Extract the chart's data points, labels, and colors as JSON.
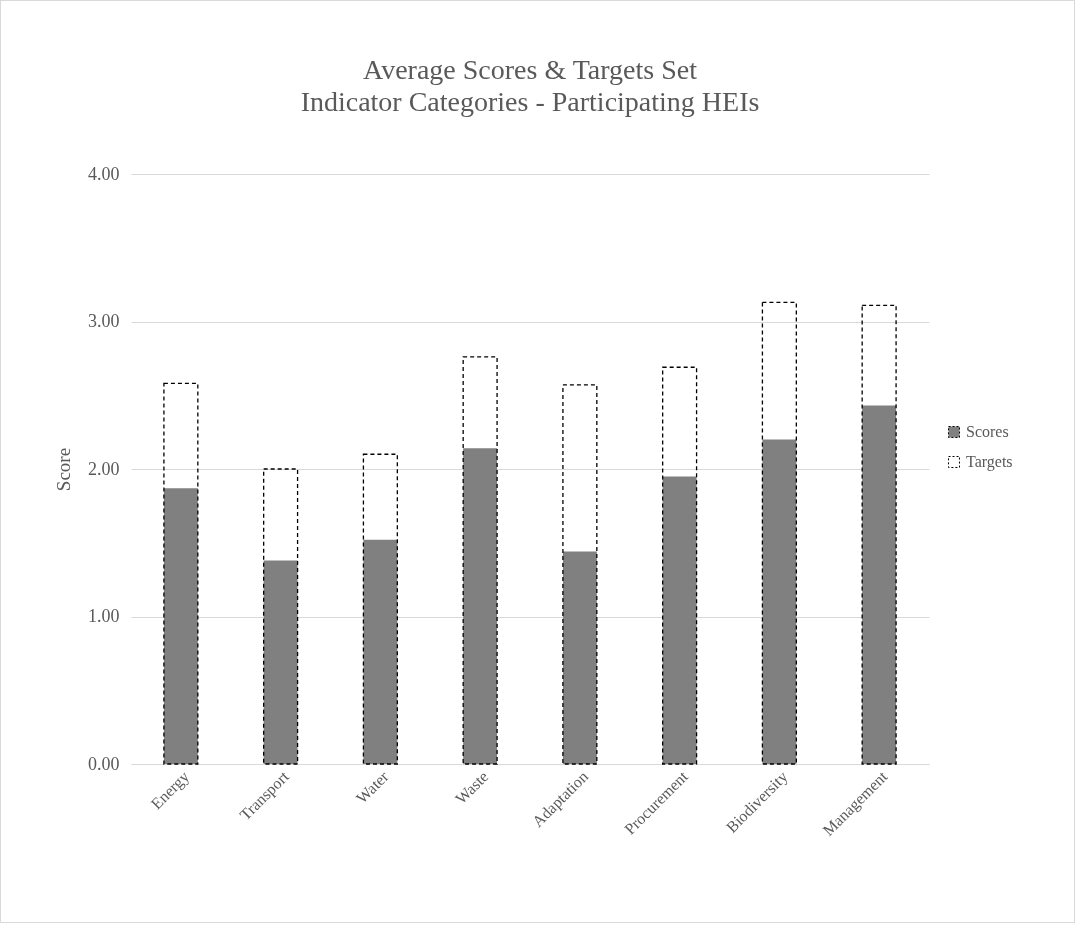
{
  "chart_data": {
    "type": "bar",
    "title": "Average Scores & Targets Set",
    "subtitle": "Indicator Categories - Participating HEIs",
    "ylabel": "Score",
    "categories": [
      "Energy",
      "Transport",
      "Water",
      "Waste",
      "Adaptation",
      "Procurement",
      "Biodiversity",
      "Management"
    ],
    "series": [
      {
        "name": "Scores",
        "color": "#808080",
        "values": [
          1.87,
          1.38,
          1.52,
          2.14,
          1.44,
          1.95,
          2.2,
          2.43
        ]
      },
      {
        "name": "Targets",
        "color": "#000000",
        "line_style": "dashed",
        "values": [
          2.58,
          2.0,
          2.1,
          2.76,
          2.57,
          2.69,
          3.13,
          3.11
        ]
      }
    ],
    "ylim": [
      0,
      4
    ],
    "yticks": [
      {
        "value": 0,
        "label": "0.00"
      },
      {
        "value": 1,
        "label": "1.00"
      },
      {
        "value": 2,
        "label": "2.00"
      },
      {
        "value": 3,
        "label": "3.00"
      },
      {
        "value": 4,
        "label": "4.00"
      }
    ],
    "grid": "y",
    "legend": "right"
  }
}
